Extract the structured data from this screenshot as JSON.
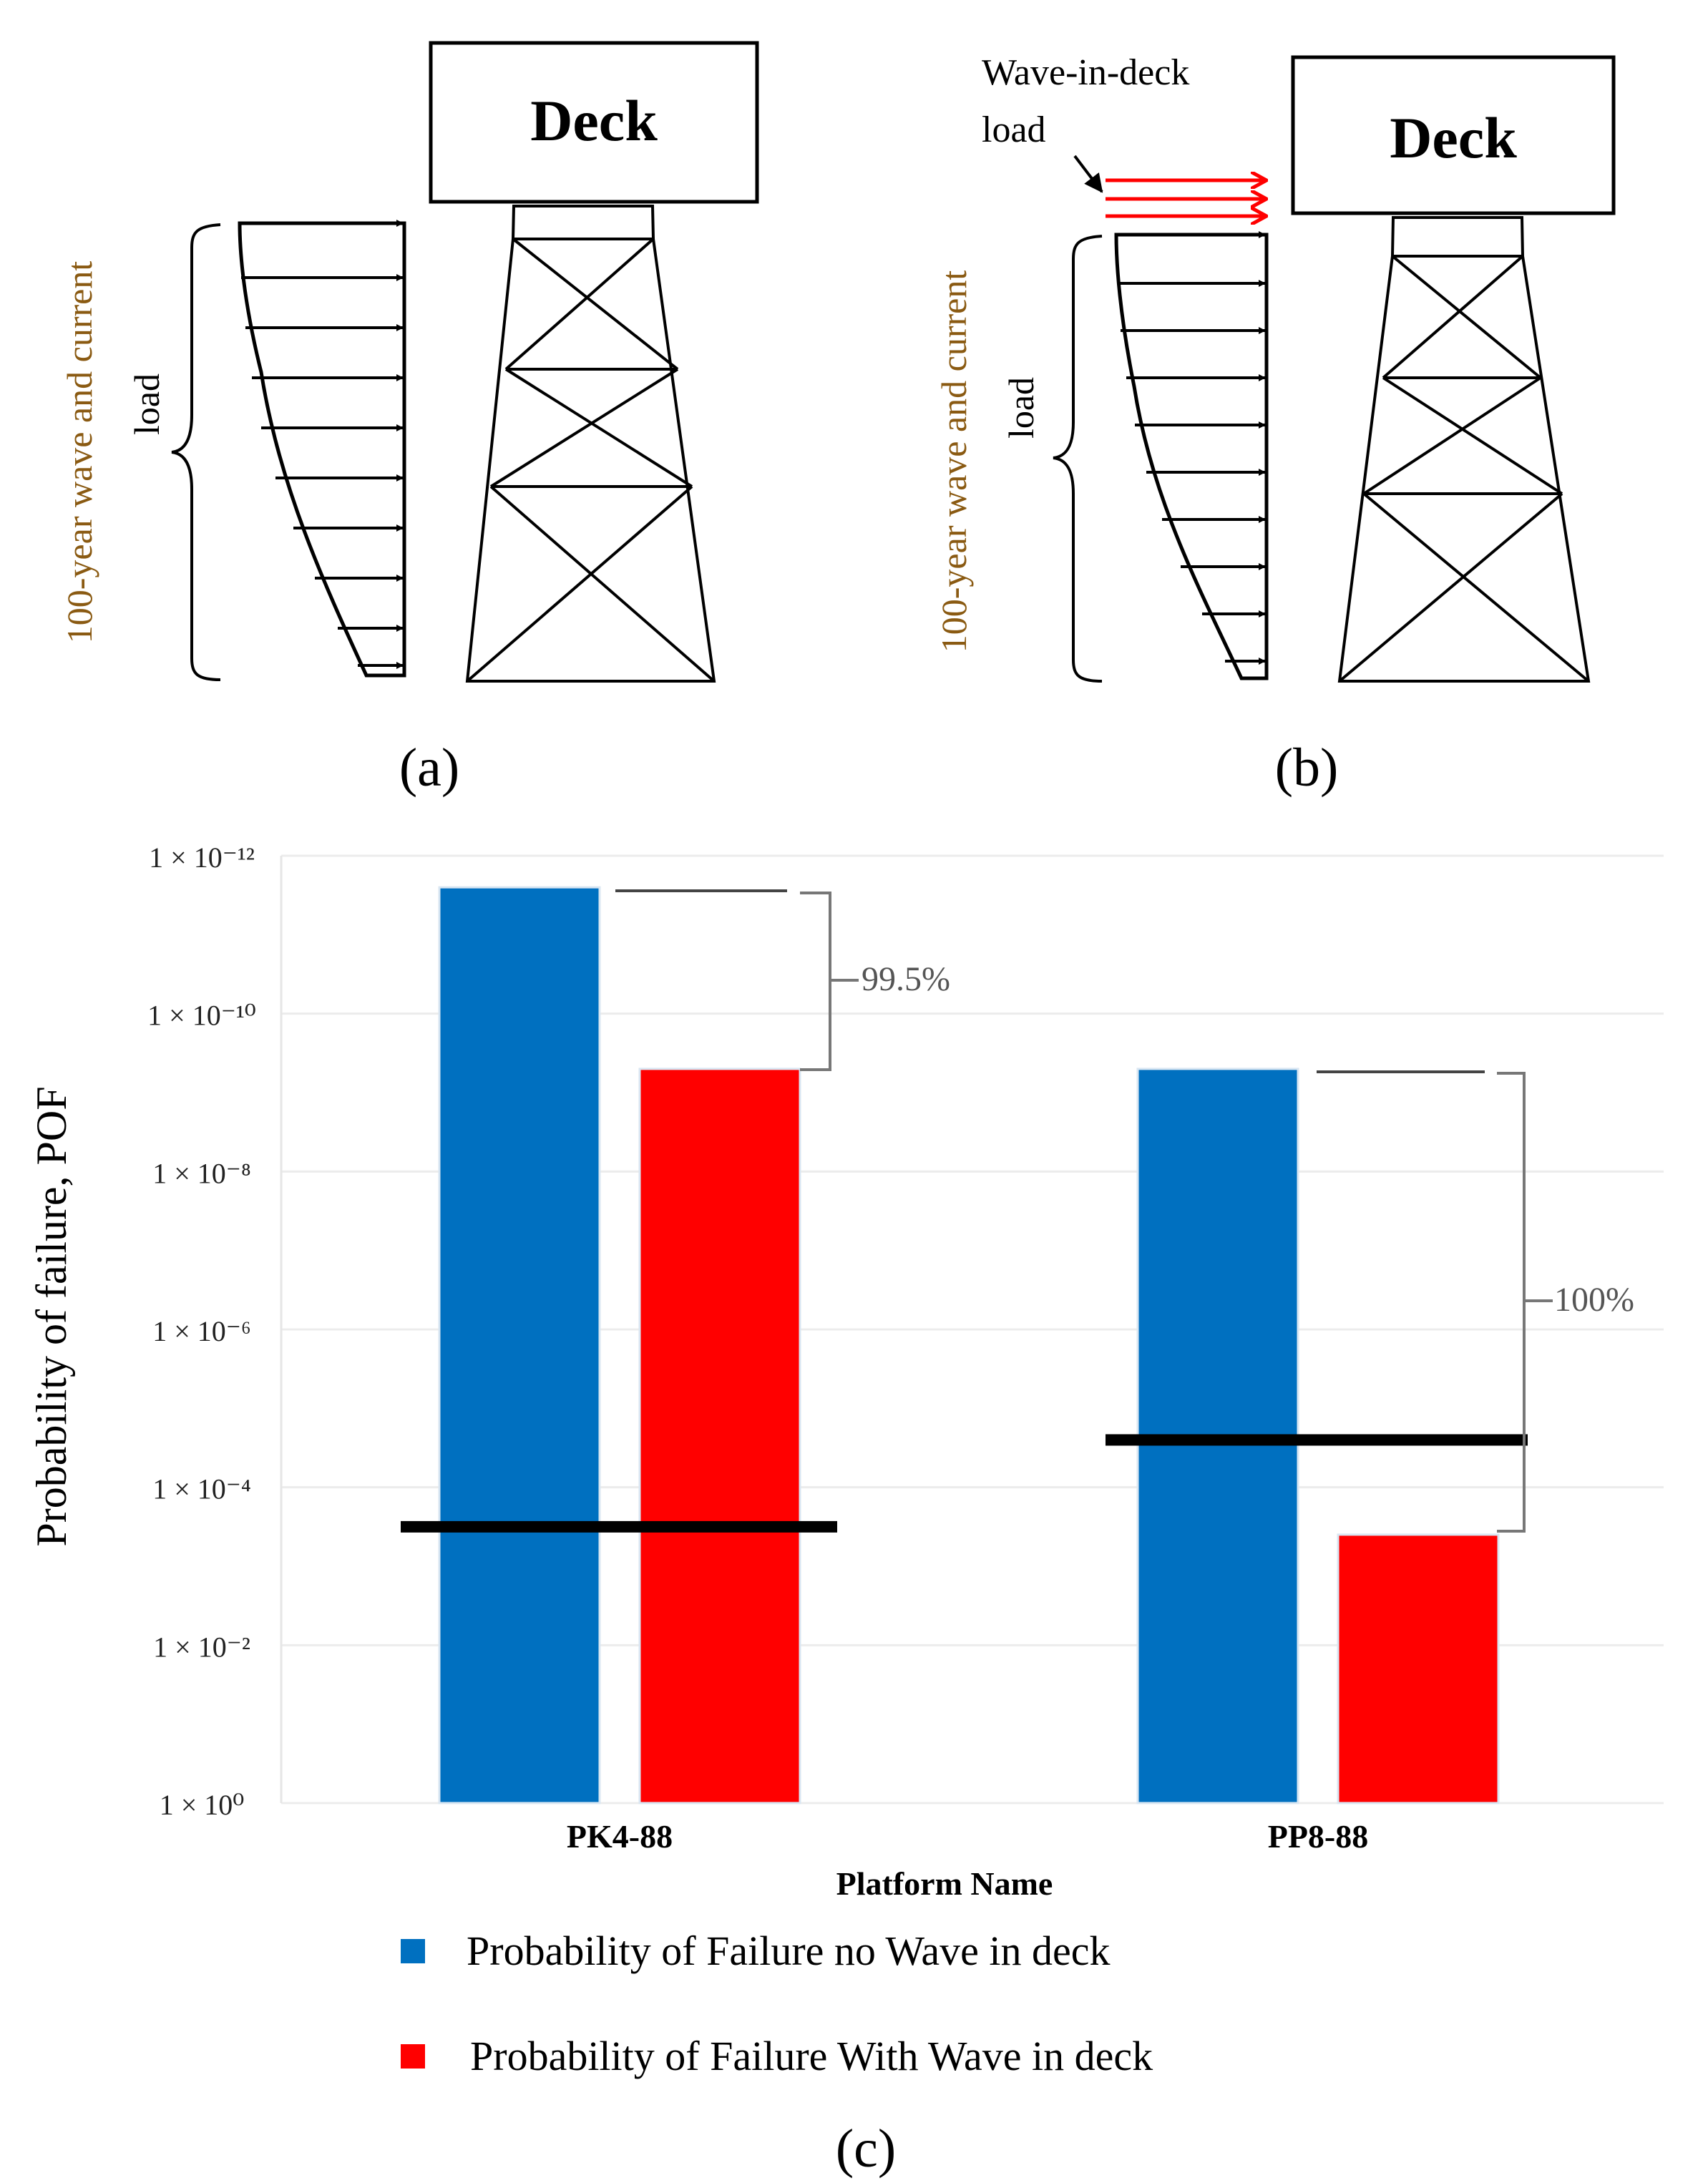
{
  "panel_a": {
    "deck_label": "Deck",
    "load_label_line1": "100-year wave and current",
    "load_label_line2": "load",
    "caption": "(a)"
  },
  "panel_b": {
    "deck_label": "Deck",
    "load_label_line1": "100-year wave and current",
    "load_label_line2": "load",
    "wave_in_deck_line1": "Wave-in-deck",
    "wave_in_deck_line2": "load",
    "caption": "(b)"
  },
  "panel_c": {
    "caption": "(c)"
  },
  "chart_data": {
    "type": "bar",
    "title": "",
    "xlabel": "Platform Name",
    "ylabel": "Probability of failure, POF",
    "y_scale": "log-inverted",
    "ylim_exponent": [
      0,
      -12
    ],
    "ytick_labels": [
      "1 × 10⁰",
      "1 × 10⁻²",
      "1 × 10⁻⁴",
      "1 × 10⁻⁶",
      "1 × 10⁻⁸",
      "1 × 10⁻¹⁰",
      "1 × 10⁻¹²"
    ],
    "ytick_exponents": [
      0,
      -2,
      -4,
      -6,
      -8,
      -10,
      -12
    ],
    "categories": [
      "PK4-88",
      "PP8-88"
    ],
    "series": [
      {
        "name": "Probability of Failure no Wave in deck",
        "color": "#0070c0",
        "exponents": [
          -11.6,
          -9.3
        ]
      },
      {
        "name": "Probability of Failure With Wave in deck",
        "color": "#ff0000",
        "exponents": [
          -9.3,
          -3.4
        ]
      }
    ],
    "threshold_lines_exponent": [
      -3.5,
      -4.6
    ],
    "annotations": [
      "99.5%",
      "100%"
    ]
  }
}
